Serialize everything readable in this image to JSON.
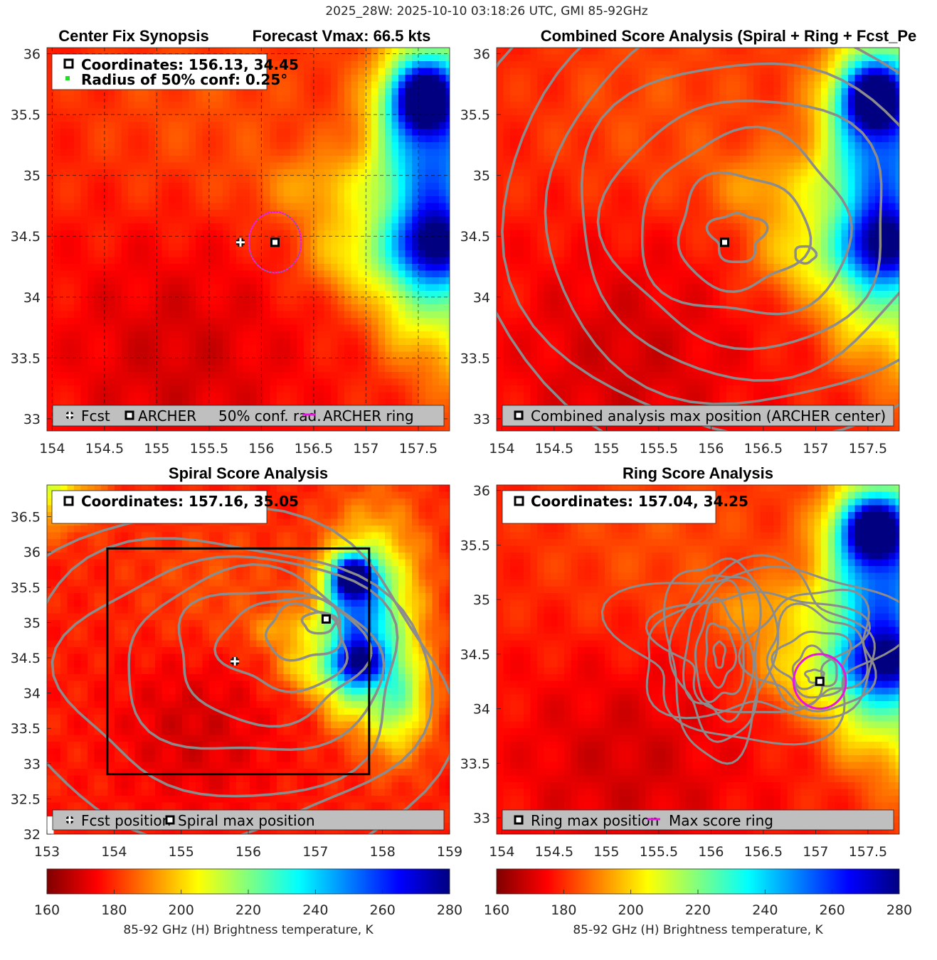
{
  "figure_title": "2025_28W: 2025-10-10 03:18:26 UTC, GMI 85-92GHz",
  "colors": {
    "ring": "#e815e0",
    "contour": "#8c8c8c",
    "legend_bg": "#bfbfbf",
    "jet_stops": [
      "#800000",
      "#ff0000",
      "#ff8000",
      "#ffff00",
      "#80ff80",
      "#00ffff",
      "#0080ff",
      "#0000ff",
      "#000080"
    ]
  },
  "chart_data": [
    {
      "id": "synopsis",
      "type": "heatmap",
      "title_left": "Center Fix Synopsis",
      "title_right": "Forecast Vmax: 66.5 kts",
      "xlim": [
        153.95,
        157.8
      ],
      "ylim": [
        32.9,
        36.05
      ],
      "xticks": [
        154,
        154.5,
        155,
        155.5,
        156,
        156.5,
        157,
        157.5
      ],
      "xtick_labels": [
        "154",
        "154.5",
        "155",
        "155.5",
        "156",
        "156.5",
        "157",
        "157.5"
      ],
      "yticks": [
        33,
        33.5,
        34,
        34.5,
        35,
        35.5,
        36
      ],
      "ytick_labels": [
        "33",
        "33.5",
        "34",
        "34.5",
        "35",
        "35.5",
        "36"
      ],
      "info_lines": [
        "Coordinates: 156.13, 34.45",
        "Radius of 50% conf: 0.25°"
      ],
      "legend": [
        "Fcst",
        "ARCHER",
        "50% conf. rad.",
        "ARCHER ring"
      ],
      "fcst": [
        155.8,
        34.45
      ],
      "archer": [
        156.13,
        34.45
      ],
      "conf_radius_deg": 0.25,
      "grid": "dashed",
      "has_contours": false
    },
    {
      "id": "combined",
      "type": "heatmap",
      "title": "Combined Score Analysis (Spiral + Ring + Fcst_Pe",
      "xlim": [
        153.95,
        157.8
      ],
      "ylim": [
        32.9,
        36.05
      ],
      "xticks": [
        154,
        154.5,
        155,
        155.5,
        156,
        156.5,
        157,
        157.5
      ],
      "xtick_labels": [
        "154",
        "154.5",
        "155",
        "155.5",
        "156",
        "156.5",
        "157",
        "157.5"
      ],
      "yticks": [
        33,
        33.5,
        34,
        34.5,
        35,
        35.5,
        36
      ],
      "ytick_labels": [
        "33",
        "33.5",
        "34",
        "34.5",
        "35",
        "35.5",
        "36"
      ],
      "legend": [
        "Combined analysis max position (ARCHER center)"
      ],
      "archer": [
        156.13,
        34.45
      ],
      "has_contours": true
    },
    {
      "id": "spiral",
      "type": "heatmap",
      "title": "Spiral Score Analysis",
      "xlim": [
        153,
        159
      ],
      "ylim": [
        32,
        36.95
      ],
      "xticks": [
        153,
        154,
        155,
        156,
        157,
        158,
        159
      ],
      "xtick_labels": [
        "153",
        "154",
        "155",
        "156",
        "157",
        "158",
        "159"
      ],
      "yticks": [
        32,
        32.5,
        33,
        33.5,
        34,
        34.5,
        35,
        35.5,
        36,
        36.5
      ],
      "ytick_labels": [
        "32",
        "32.5",
        "33",
        "33.5",
        "34",
        "34.5",
        "35",
        "35.5",
        "36",
        "36.5"
      ],
      "info_lines": [
        "Coordinates: 157.16, 35.05"
      ],
      "legend": [
        "Fcst position",
        "Spiral max position"
      ],
      "fcst": [
        155.8,
        34.45
      ],
      "spiral_max": [
        157.16,
        35.05
      ],
      "search_box": [
        153.9,
        157.8,
        32.85,
        36.05
      ],
      "has_contours": true
    },
    {
      "id": "ring",
      "type": "heatmap",
      "title": "Ring Score Analysis",
      "xlim": [
        153.95,
        157.8
      ],
      "ylim": [
        32.85,
        36.05
      ],
      "xticks": [
        154,
        154.5,
        155,
        155.5,
        156,
        156.5,
        157,
        157.5
      ],
      "xtick_labels": [
        "154",
        "154.5",
        "155",
        "155.5",
        "156",
        "156.5",
        "157",
        "157.5"
      ],
      "yticks": [
        33,
        33.5,
        34,
        34.5,
        35,
        35.5,
        36
      ],
      "ytick_labels": [
        "33",
        "33.5",
        "34",
        "34.5",
        "35",
        "35.5",
        "36"
      ],
      "info_lines": [
        "Coordinates: 157.04, 34.25"
      ],
      "legend": [
        "Ring max position",
        "Max score ring"
      ],
      "ring_max": [
        157.04,
        34.25
      ],
      "ring_radius_deg": 0.25,
      "has_contours": true
    }
  ],
  "colorbars": [
    {
      "id": "colorbar-left",
      "range": [
        160,
        280
      ],
      "ticks": [
        160,
        180,
        200,
        220,
        240,
        260,
        280
      ],
      "tick_labels": [
        "160",
        "180",
        "200",
        "220",
        "240",
        "260",
        "280"
      ],
      "label": "85-92 GHz (H) Brightness temperature, K"
    },
    {
      "id": "colorbar-right",
      "range": [
        160,
        280
      ],
      "ticks": [
        160,
        180,
        200,
        220,
        240,
        260,
        280
      ],
      "tick_labels": [
        "160",
        "180",
        "200",
        "220",
        "240",
        "260",
        "280"
      ],
      "label": "85-92 GHz (H) Brightness temperature, K"
    }
  ]
}
